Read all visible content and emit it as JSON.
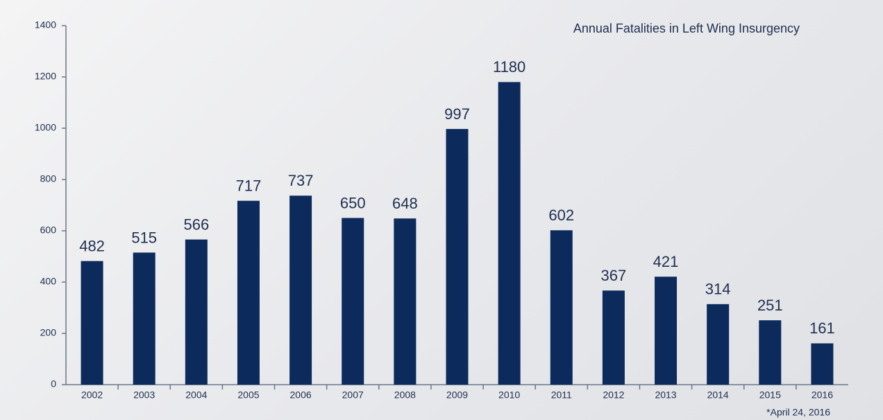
{
  "chart_data": {
    "type": "bar",
    "title": "Annual Fatalities in Left Wing Insurgency",
    "categories": [
      "2002",
      "2003",
      "2004",
      "2005",
      "2006",
      "2007",
      "2008",
      "2009",
      "2010",
      "2011",
      "2012",
      "2013",
      "2014",
      "2015",
      "2016"
    ],
    "values": [
      482,
      515,
      566,
      717,
      737,
      650,
      648,
      997,
      1180,
      602,
      367,
      421,
      314,
      251,
      161
    ],
    "color": "#0c2a5b",
    "ylim": [
      0,
      1400
    ],
    "yticks": [
      0,
      200,
      400,
      600,
      800,
      1000,
      1200,
      1400
    ],
    "grid": false,
    "footnote": "*April 24, 2016"
  }
}
